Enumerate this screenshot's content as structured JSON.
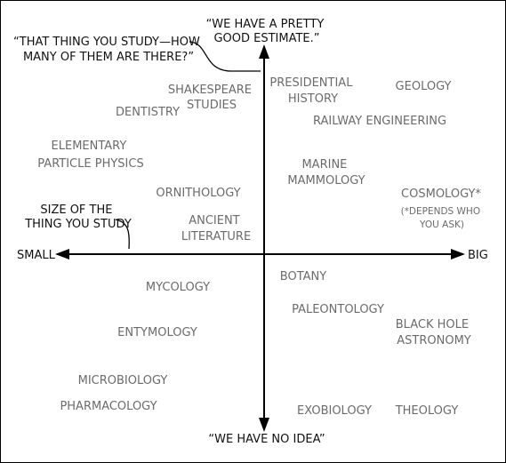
{
  "axes": {
    "top_label": [
      "“WE HAVE A PRETTY",
      "GOOD ESTIMATE.”"
    ],
    "bottom_label": "“WE HAVE NO IDEA”",
    "left_label": "SMALL",
    "right_label": "BIG"
  },
  "annotations": {
    "question": [
      "“THAT THING YOU STUDY—HOW",
      "MANY OF THEM ARE THERE?”"
    ],
    "size": [
      "SIZE OF THE",
      "THING YOU STUDY"
    ]
  },
  "fields": [
    {
      "id": "presidential-history",
      "lines": [
        "PRESIDENTIAL",
        "HISTORY"
      ]
    },
    {
      "id": "geology",
      "lines": [
        "GEOLOGY"
      ]
    },
    {
      "id": "shakespeare-studies",
      "lines": [
        "SHAKESPEARE",
        "STUDIES"
      ]
    },
    {
      "id": "dentistry",
      "lines": [
        "DENTISTRY"
      ]
    },
    {
      "id": "railway-engineering",
      "lines": [
        "RAILWAY ENGINEERING"
      ]
    },
    {
      "id": "elementary-particle-physics",
      "lines": [
        "ELEMENTARY",
        "PARTICLE PHYSICS"
      ]
    },
    {
      "id": "marine-mammology",
      "lines": [
        "MARINE",
        "MAMMOLOGY"
      ]
    },
    {
      "id": "ornithology",
      "lines": [
        "ORNITHOLOGY"
      ]
    },
    {
      "id": "cosmology",
      "lines": [
        "COSMOLOGY*"
      ],
      "note": [
        "(*DEPENDS WHO",
        "YOU ASK)"
      ]
    },
    {
      "id": "ancient-literature",
      "lines": [
        "ANCIENT",
        "LITERATURE"
      ]
    },
    {
      "id": "botany",
      "lines": [
        "BOTANY"
      ]
    },
    {
      "id": "mycology",
      "lines": [
        "MYCOLOGY"
      ]
    },
    {
      "id": "paleontology",
      "lines": [
        "PALEONTOLOGY"
      ]
    },
    {
      "id": "black-hole-astronomy",
      "lines": [
        "BLACK HOLE",
        "ASTRONOMY"
      ]
    },
    {
      "id": "entymology",
      "lines": [
        "ENTYMOLOGY"
      ]
    },
    {
      "id": "microbiology",
      "lines": [
        "MICROBIOLOGY"
      ]
    },
    {
      "id": "pharmacology",
      "lines": [
        "PHARMACOLOGY"
      ]
    },
    {
      "id": "exobiology",
      "lines": [
        "EXOBIOLOGY"
      ]
    },
    {
      "id": "theology",
      "lines": [
        "THEOLOGY"
      ]
    }
  ]
}
